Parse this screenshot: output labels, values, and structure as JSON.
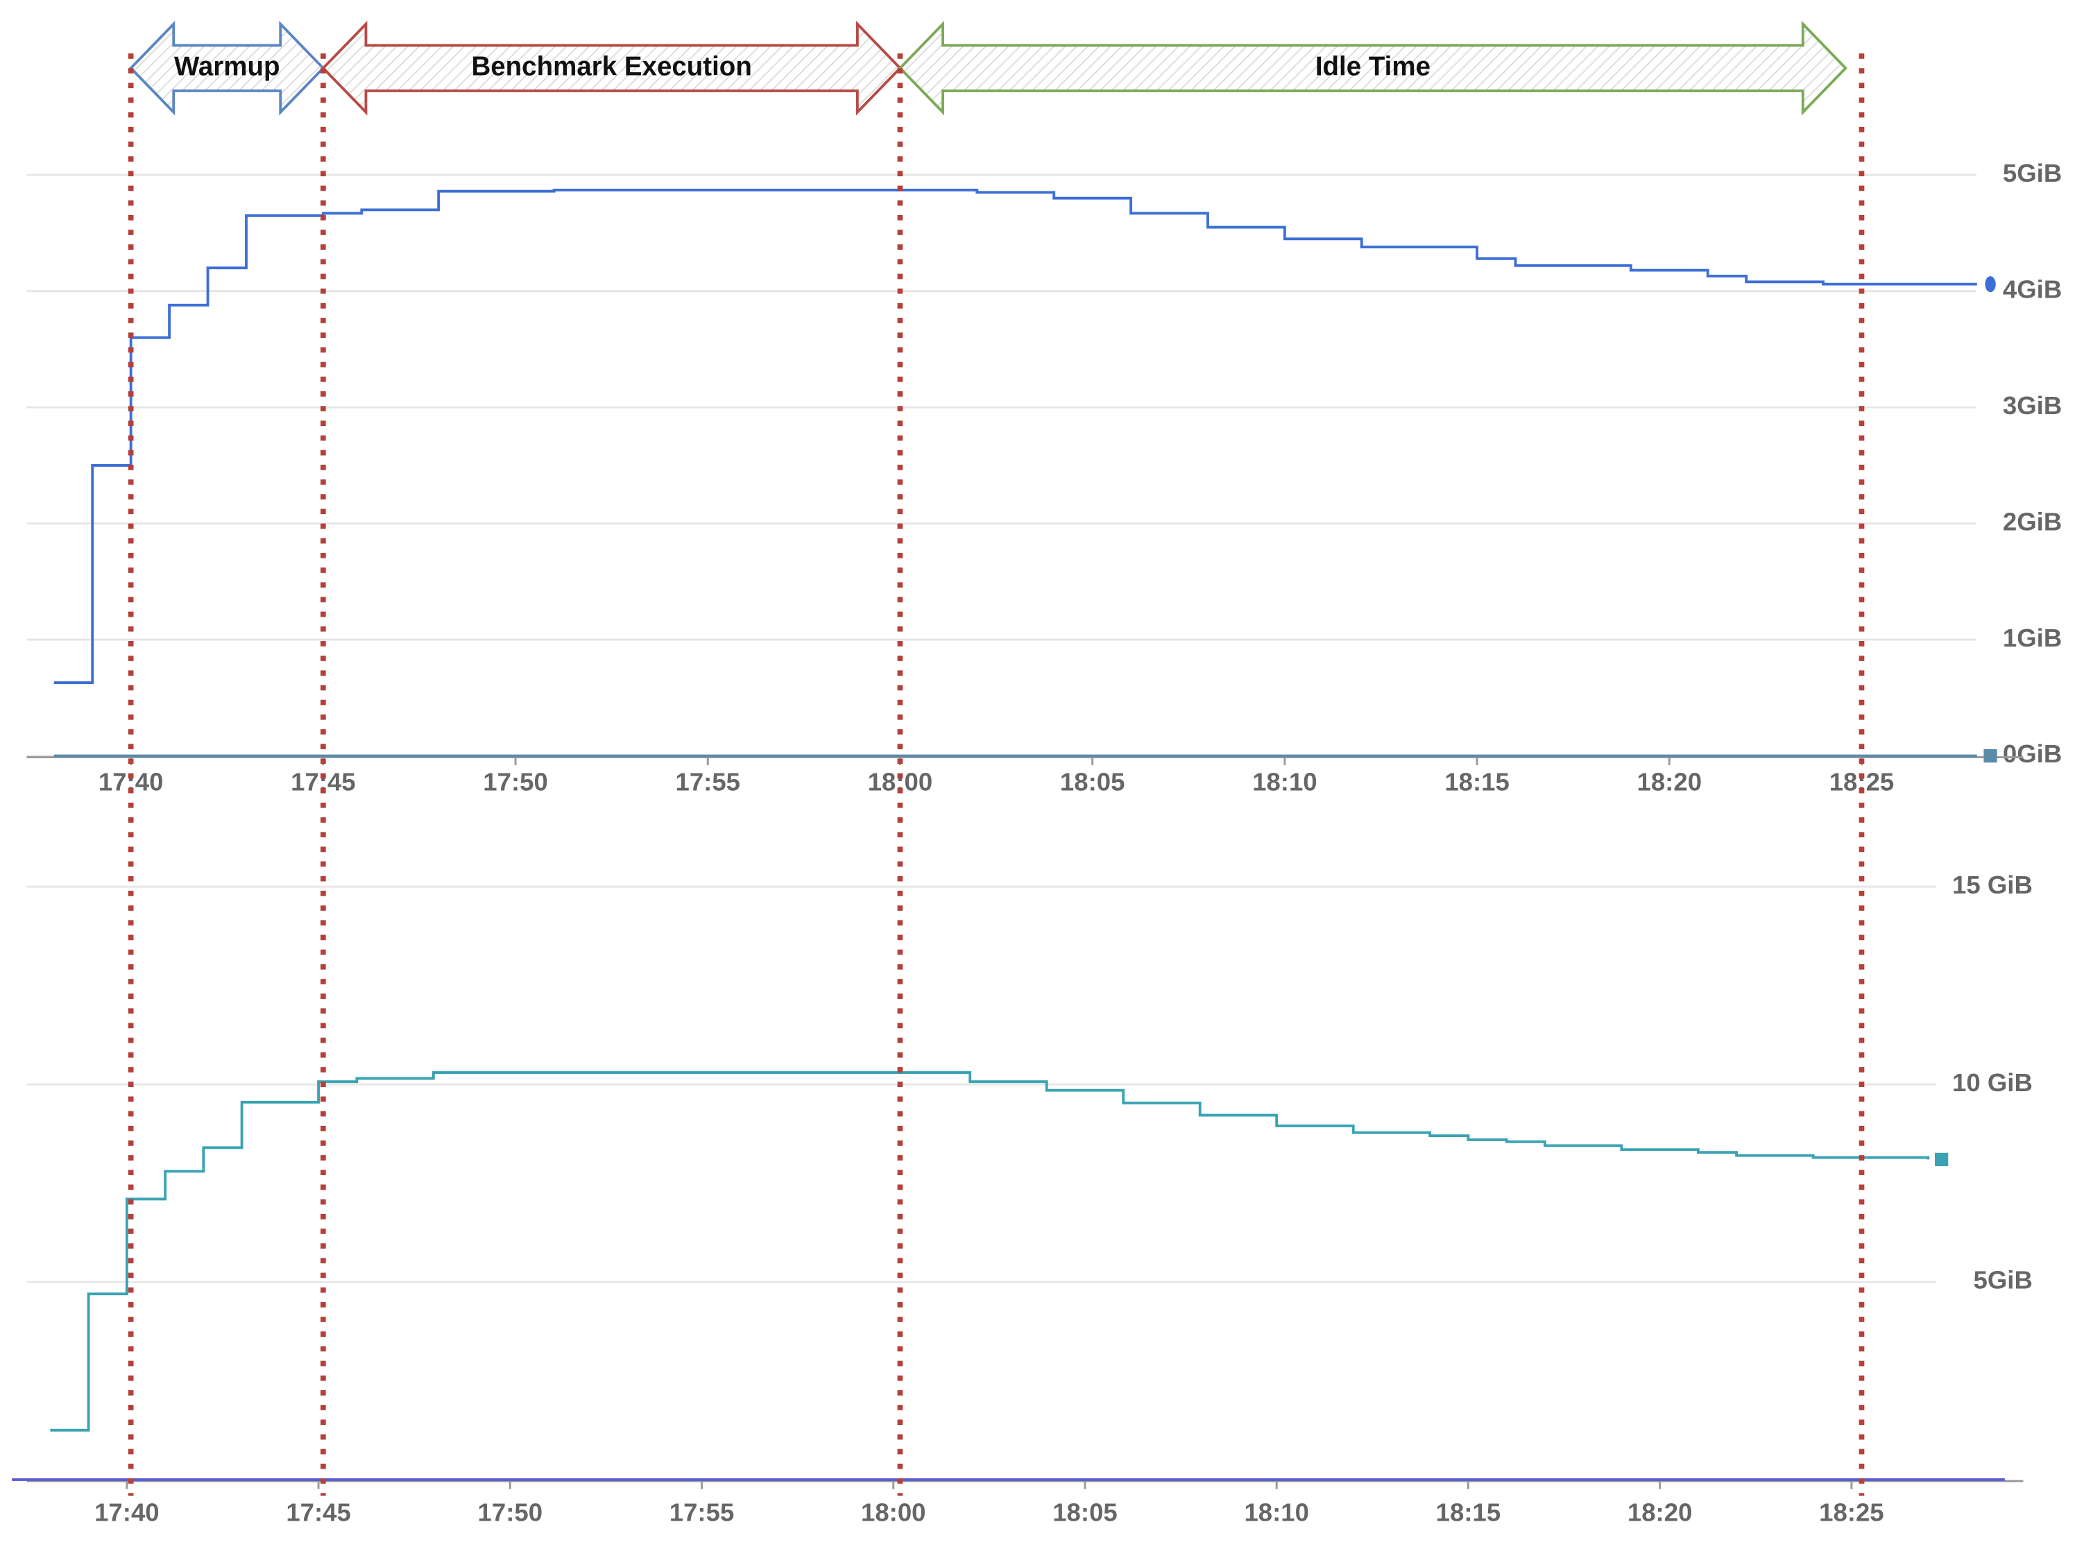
{
  "charts": [
    {
      "chart_data": {
        "type": "line",
        "step": true,
        "grid": true,
        "xlim": [
          "17:37",
          "18:29"
        ],
        "xticks": [
          "17:40",
          "17:45",
          "17:50",
          "17:55",
          "18:00",
          "18:05",
          "18:10",
          "18:15",
          "18:20",
          "18:25"
        ],
        "ylim": [
          0,
          5
        ],
        "yticks": [
          {
            "value": 0,
            "label": "0GiB"
          },
          {
            "value": 1,
            "label": "1GiB"
          },
          {
            "value": 2,
            "label": "2GiB"
          },
          {
            "value": 3,
            "label": "3GiB"
          },
          {
            "value": 4,
            "label": "4GiB"
          },
          {
            "value": 5,
            "label": "5GiB"
          }
        ],
        "series": [
          {
            "color": "#3c6fd6",
            "end_marker": "circle",
            "x": [
              "17:38",
              "17:39",
              "17:40",
              "17:41",
              "17:42",
              "17:43",
              "17:45",
              "17:46",
              "17:48",
              "17:51",
              "18:02",
              "18:04",
              "18:06",
              "18:08",
              "18:10",
              "18:12",
              "18:15",
              "18:16",
              "18:19",
              "18:21",
              "18:22",
              "18:24",
              "18:28"
            ],
            "values": [
              0.63,
              2.5,
              3.6,
              3.88,
              4.2,
              4.65,
              4.67,
              4.7,
              4.86,
              4.87,
              4.85,
              4.8,
              4.67,
              4.55,
              4.45,
              4.38,
              4.28,
              4.22,
              4.18,
              4.13,
              4.08,
              4.06,
              4.06
            ]
          },
          {
            "color": "#5a8ba8",
            "end_marker": "square",
            "x": [
              "17:38",
              "18:28"
            ],
            "values": [
              0,
              0
            ]
          }
        ]
      }
    },
    {
      "chart_data": {
        "type": "line",
        "step": true,
        "grid": true,
        "xlim": [
          "17:37",
          "18:29"
        ],
        "xticks": [
          "17:40",
          "17:45",
          "17:50",
          "17:55",
          "18:00",
          "18:05",
          "18:10",
          "18:15",
          "18:20",
          "18:25"
        ],
        "ylim": [
          0,
          15
        ],
        "yticks": [
          {
            "value": 5,
            "label": "5GiB"
          },
          {
            "value": 10,
            "label": "10 GiB"
          },
          {
            "value": 15,
            "label": "15 GiB"
          }
        ],
        "series": [
          {
            "color": "#3aa3b3",
            "end_marker": "square",
            "x": [
              "17:38",
              "17:39",
              "17:40",
              "17:41",
              "17:42",
              "17:43",
              "17:45",
              "17:46",
              "17:48",
              "18:02",
              "18:04",
              "18:06",
              "18:08",
              "18:10",
              "18:12",
              "18:14",
              "18:15",
              "18:16",
              "18:17",
              "18:19",
              "18:21",
              "18:22",
              "18:24",
              "18:27"
            ],
            "values": [
              1.25,
              4.7,
              7.1,
              7.8,
              8.4,
              9.55,
              10.07,
              10.15,
              10.3,
              10.07,
              9.85,
              9.53,
              9.22,
              8.95,
              8.78,
              8.7,
              8.6,
              8.55,
              8.45,
              8.35,
              8.28,
              8.2,
              8.15,
              8.1
            ]
          },
          {
            "color": "#5a5ad6",
            "x": [
              "17:37",
              "18:29"
            ],
            "values": [
              0,
              0
            ]
          }
        ]
      }
    }
  ],
  "phases": [
    {
      "label": "Warmup",
      "start": "17:40",
      "end": "17:45",
      "color": "#5b86c4"
    },
    {
      "label": "Benchmark Execution",
      "start": "17:45",
      "end": "18:00",
      "color": "#b84a46"
    },
    {
      "label": "Idle Time",
      "start": "18:00",
      "end": "18:25",
      "color": "#7aaa55"
    }
  ],
  "markers": [
    "17:40",
    "17:45",
    "18:00",
    "18:25"
  ]
}
